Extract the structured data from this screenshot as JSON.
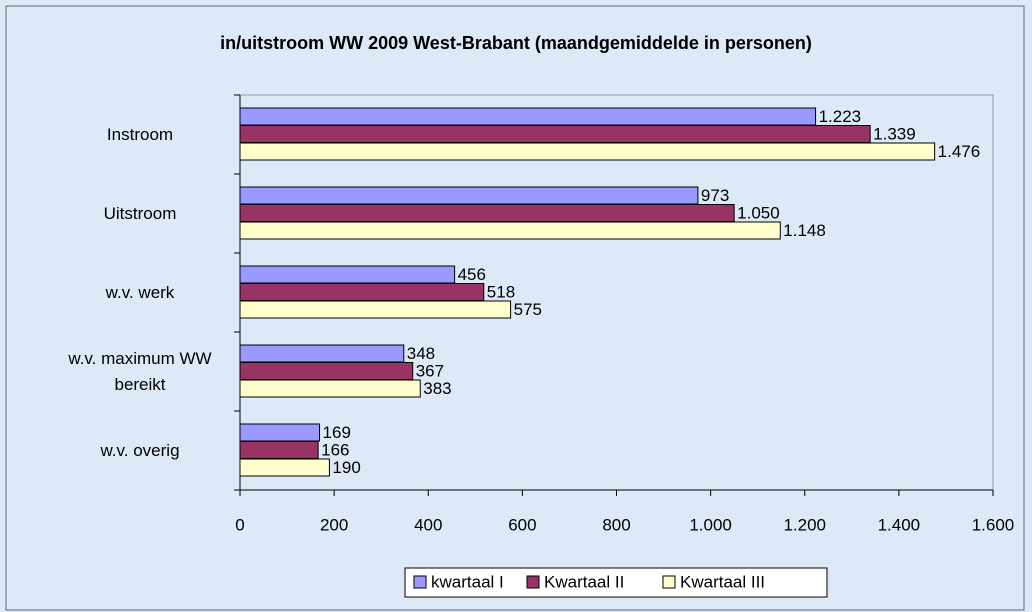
{
  "chart_data": {
    "type": "hbar",
    "title": "in/uitstroom WW 2009 West-Brabant (maandgemiddelde in personen)",
    "categories": [
      "Instroom",
      "Uitstroom",
      "w.v. werk",
      "w.v. maximum WW bereikt",
      "w.v. overig"
    ],
    "series": [
      {
        "name": "kwartaal I",
        "color": "#9999ff",
        "values": [
          1223,
          973,
          456,
          348,
          169
        ],
        "value_labels": [
          "1.223",
          "973",
          "456",
          "348",
          "169"
        ]
      },
      {
        "name": "Kwartaal II",
        "color": "#993366",
        "values": [
          1339,
          1050,
          518,
          367,
          166
        ],
        "value_labels": [
          "1.339",
          "1.050",
          "518",
          "367",
          "166"
        ]
      },
      {
        "name": "Kwartaal III",
        "color": "#ffffcc",
        "values": [
          1476,
          1148,
          575,
          383,
          190
        ],
        "value_labels": [
          "1.476",
          "1.148",
          "575",
          "383",
          "190"
        ]
      }
    ],
    "xlim": [
      0,
      1600
    ],
    "xticks": [
      0,
      200,
      400,
      600,
      800,
      {
        "value": 1000,
        "label": "1.000"
      },
      {
        "value": 1200,
        "label": "1.200"
      },
      {
        "value": 1400,
        "label": "1.400"
      },
      {
        "value": 1600,
        "label": "1.600"
      }
    ],
    "legend": "bottom"
  }
}
